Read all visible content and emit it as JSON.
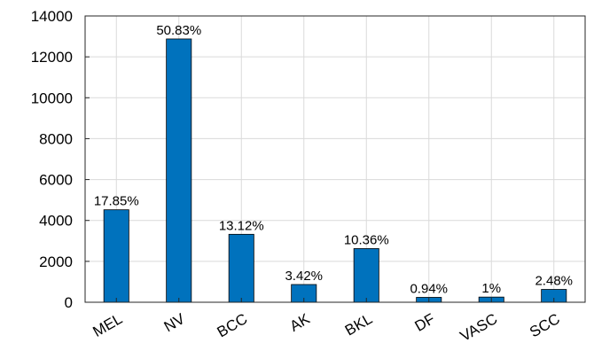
{
  "chart_data": {
    "type": "bar",
    "categories": [
      "MEL",
      "NV",
      "BCC",
      "AK",
      "BKL",
      "DF",
      "VASC",
      "SCC"
    ],
    "values": [
      4522,
      12875,
      3323,
      867,
      2624,
      239,
      253,
      628
    ],
    "data_labels": [
      "17.85%",
      "50.83%",
      "13.12%",
      "3.42%",
      "10.36%",
      "0.94%",
      "1%",
      "2.48%"
    ],
    "ylim": [
      0,
      14000
    ],
    "yticks": [
      0,
      2000,
      4000,
      6000,
      8000,
      10000,
      12000,
      14000
    ],
    "ytick_labels": [
      "0",
      "2000",
      "4000",
      "6000",
      "8000",
      "10000",
      "12000",
      "14000"
    ],
    "grid": true,
    "title": "",
    "xlabel": "",
    "ylabel": "",
    "bar_color": "#0072BD",
    "grid_color": "#DADADA"
  }
}
